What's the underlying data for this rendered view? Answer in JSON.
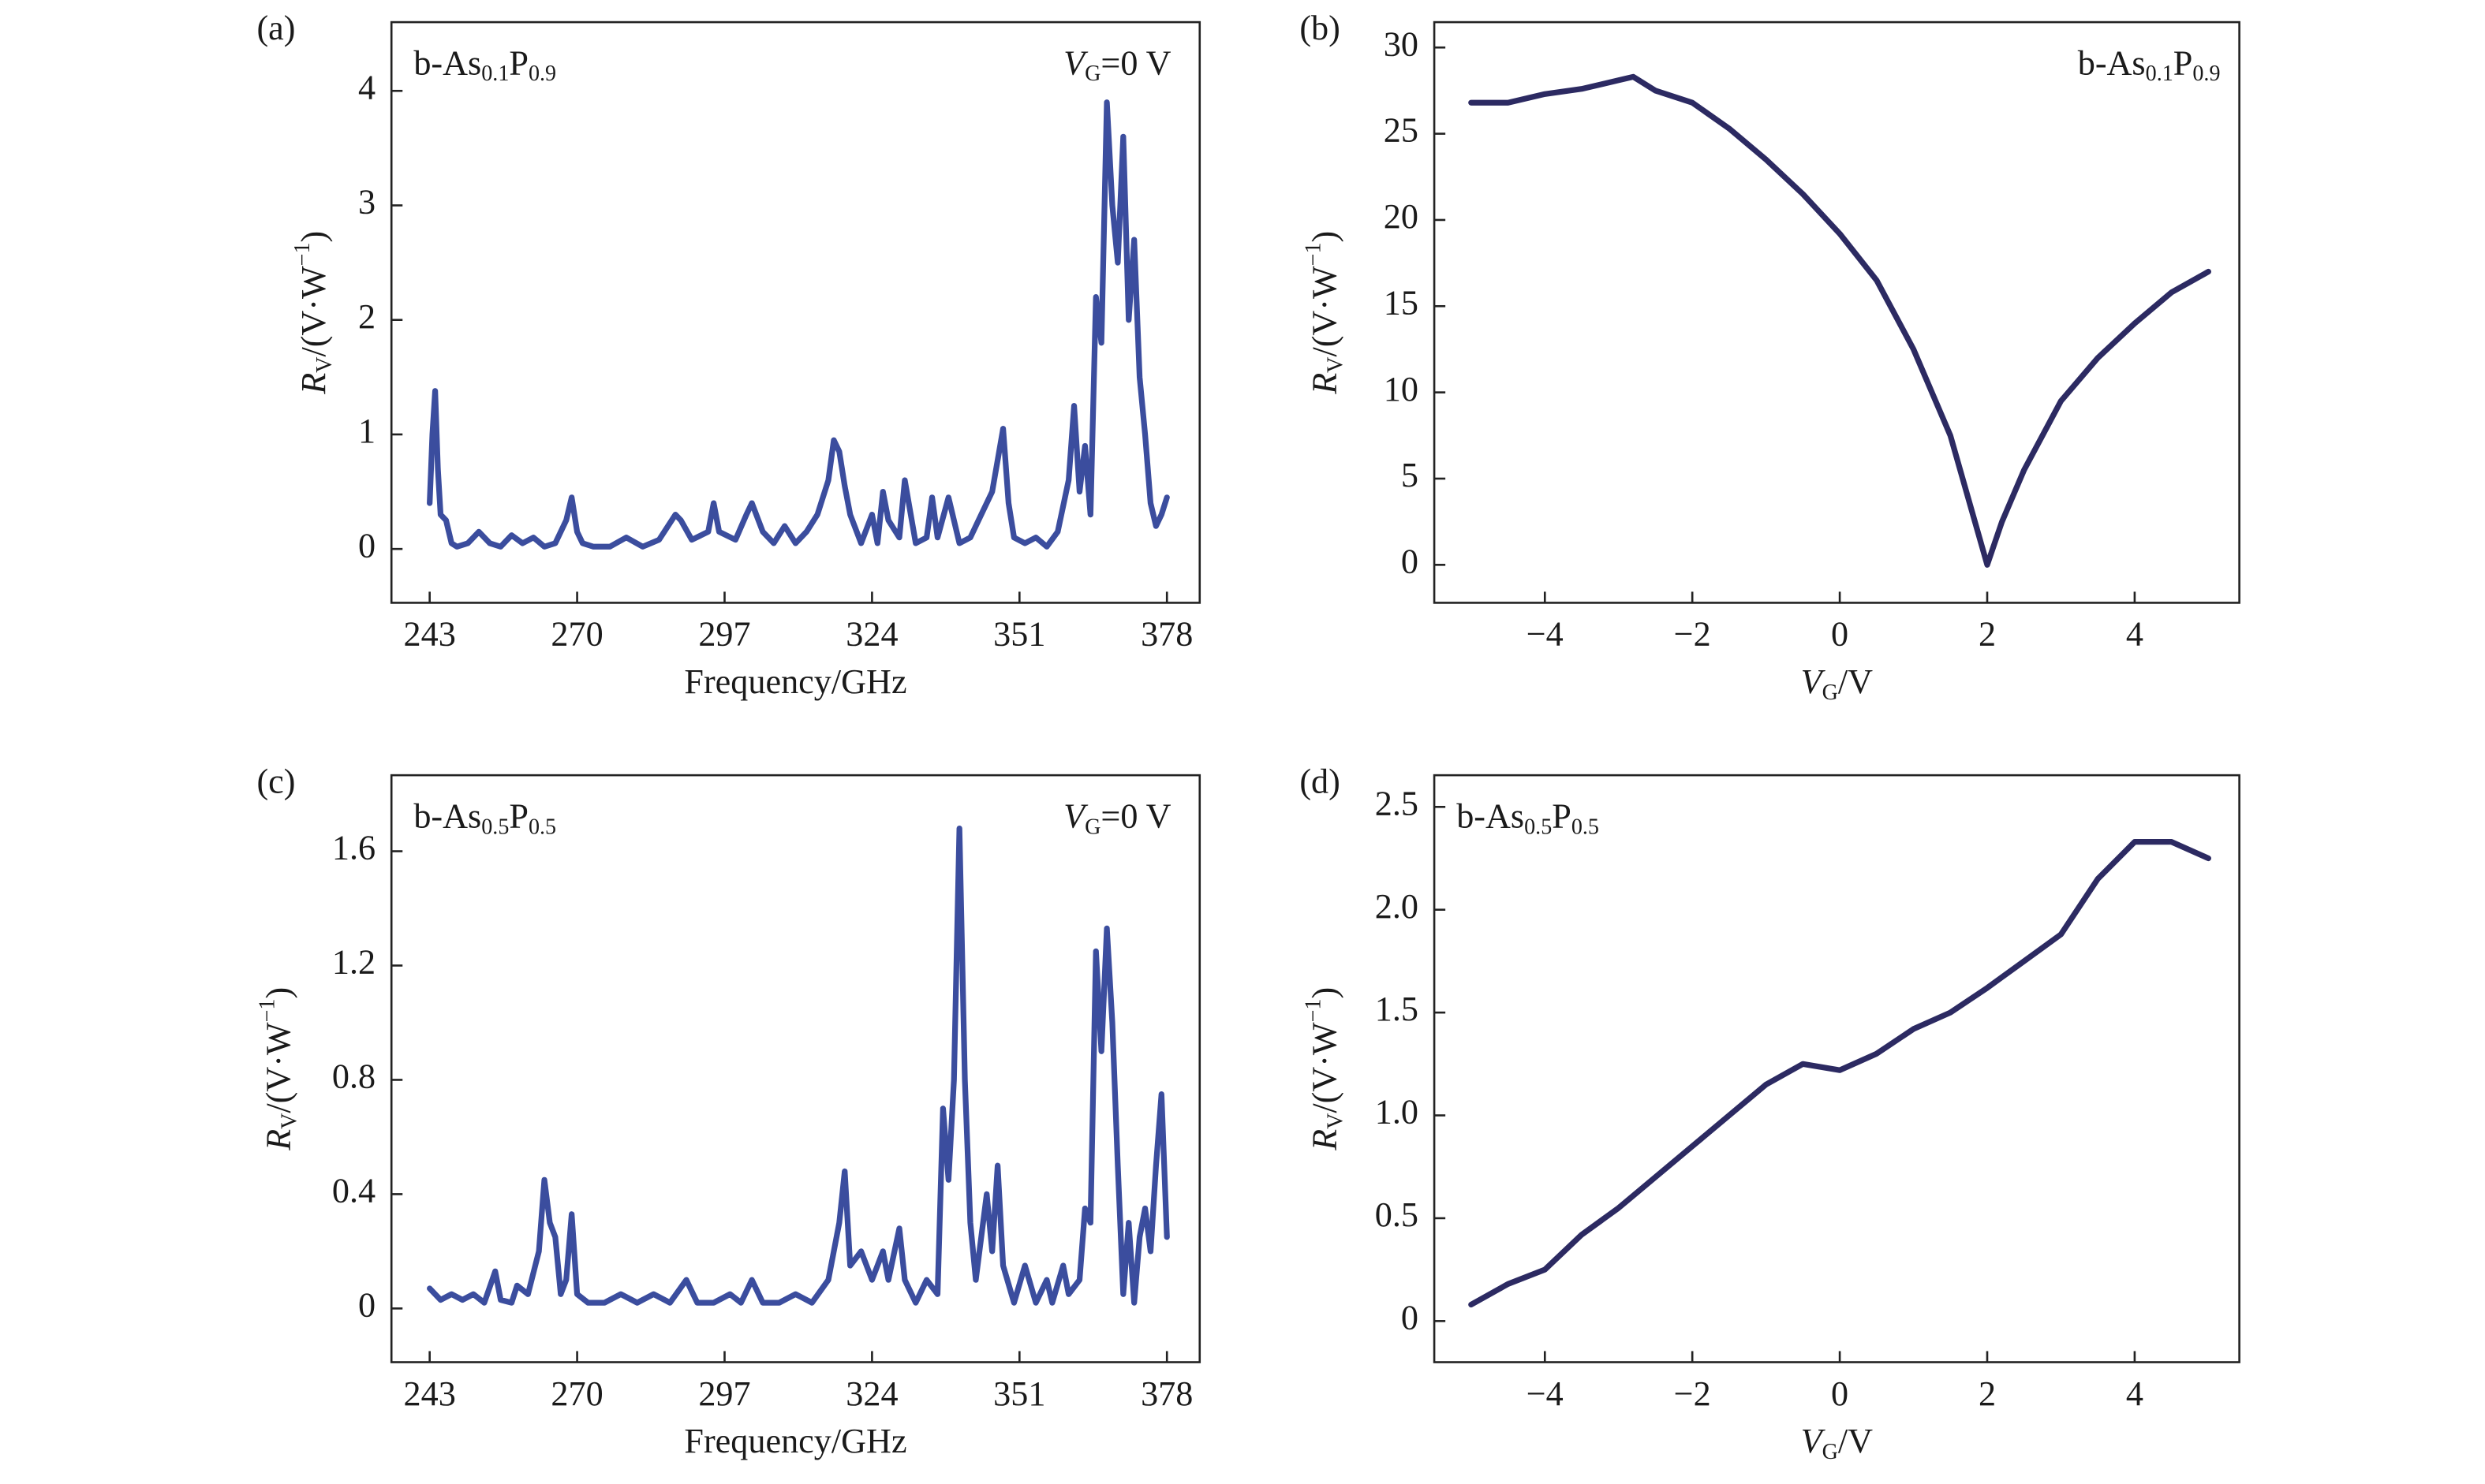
{
  "chart_data": [
    {
      "type": "line",
      "panel_label": "(a)",
      "sample_label": [
        "b-As",
        "0.1",
        "P",
        "0.9"
      ],
      "gate_label": [
        "V",
        "G",
        "=0 V"
      ],
      "xlabel": "Frequency/GHz",
      "ylabel": [
        "R",
        "V",
        "/(V·W",
        "−1",
        ")"
      ],
      "color": "#3b4d9e",
      "xlim": [
        236,
        384
      ],
      "ylim": [
        -0.47,
        4.6
      ],
      "xticks": [
        243,
        270,
        297,
        324,
        351,
        378
      ],
      "yticks": [
        0,
        1,
        2,
        3,
        4
      ],
      "x": [
        243,
        243.5,
        244,
        244.5,
        245,
        246,
        247,
        248,
        250,
        252,
        254,
        256,
        258,
        260,
        262,
        264,
        266,
        268,
        269,
        270,
        271,
        273,
        276,
        279,
        282,
        285,
        288,
        289,
        291,
        294,
        295,
        296,
        299,
        301,
        302,
        304,
        306,
        308,
        310,
        312,
        314,
        316,
        317,
        318,
        319,
        320,
        322,
        324,
        325,
        326,
        327,
        329,
        330,
        332,
        334,
        335,
        336,
        338,
        340,
        342,
        344,
        346,
        348,
        349,
        350,
        352,
        354,
        356,
        358,
        360,
        361,
        362,
        363,
        364,
        365,
        366,
        367,
        368,
        369,
        370,
        371,
        372,
        373,
        374,
        375,
        376,
        377,
        378
      ],
      "values": [
        0.4,
        1.0,
        1.38,
        0.7,
        0.3,
        0.25,
        0.05,
        0.02,
        0.05,
        0.15,
        0.05,
        0.02,
        0.12,
        0.05,
        0.1,
        0.02,
        0.05,
        0.25,
        0.45,
        0.15,
        0.05,
        0.02,
        0.02,
        0.1,
        0.02,
        0.08,
        0.3,
        0.25,
        0.08,
        0.15,
        0.4,
        0.15,
        0.08,
        0.3,
        0.4,
        0.15,
        0.05,
        0.2,
        0.05,
        0.15,
        0.3,
        0.6,
        0.95,
        0.85,
        0.55,
        0.3,
        0.05,
        0.3,
        0.05,
        0.5,
        0.25,
        0.1,
        0.6,
        0.05,
        0.1,
        0.45,
        0.1,
        0.45,
        0.05,
        0.1,
        0.3,
        0.5,
        1.05,
        0.4,
        0.1,
        0.05,
        0.1,
        0.02,
        0.15,
        0.6,
        1.25,
        0.5,
        0.9,
        0.3,
        2.2,
        1.8,
        3.9,
        3.0,
        2.5,
        3.6,
        2.0,
        2.7,
        1.5,
        1.0,
        0.4,
        0.2,
        0.3,
        0.45
      ]
    },
    {
      "type": "line",
      "panel_label": "(b)",
      "sample_label": [
        "b-As",
        "0.1",
        "P",
        "0.9"
      ],
      "xlabel": [
        "V",
        "G",
        "/V"
      ],
      "ylabel": [
        "R",
        "V",
        "/(V·W",
        "−1",
        ")"
      ],
      "color": "#2c2a62",
      "xlim": [
        -5.5,
        5.42
      ],
      "ylim": [
        -2.2,
        31.47
      ],
      "xticks": [
        {
          "value": -4,
          "label": "−4"
        },
        {
          "value": -2,
          "label": "−2"
        },
        0,
        2,
        4
      ],
      "yticks": [
        0,
        5,
        10,
        15,
        20,
        25,
        30
      ],
      "x": [
        -5,
        -4.5,
        -4,
        -3.5,
        -3,
        -2.8,
        -2.5,
        -2,
        -1.5,
        -1,
        -0.5,
        0,
        0.5,
        1,
        1.5,
        1.8,
        2,
        2.2,
        2.5,
        3,
        3.5,
        4,
        4.5,
        5
      ],
      "values": [
        26.8,
        26.8,
        27.3,
        27.6,
        28.1,
        28.3,
        27.5,
        26.8,
        25.3,
        23.5,
        21.5,
        19.2,
        16.5,
        12.5,
        7.5,
        3.0,
        0,
        2.5,
        5.5,
        9.5,
        12.0,
        14.0,
        15.8,
        17.0
      ]
    },
    {
      "type": "line",
      "panel_label": "(c)",
      "sample_label": [
        "b-As",
        "0.5",
        "P",
        "0.5"
      ],
      "gate_label": [
        "V",
        "G",
        "=0 V"
      ],
      "xlabel": "Frequency/GHz",
      "ylabel": [
        "R",
        "V",
        "/(V·W",
        "−1",
        ")"
      ],
      "color": "#3b4d9e",
      "xlim": [
        236,
        384
      ],
      "ylim": [
        -0.188,
        1.866
      ],
      "xticks": [
        243,
        270,
        297,
        324,
        351,
        378
      ],
      "yticks": [
        0,
        0.4,
        0.8,
        1.2,
        1.6
      ],
      "x": [
        243,
        245,
        247,
        249,
        251,
        253,
        255,
        256,
        258,
        259,
        261,
        263,
        264,
        265,
        266,
        267,
        268,
        269,
        270,
        272,
        275,
        278,
        281,
        284,
        287,
        290,
        292,
        295,
        298,
        300,
        302,
        304,
        307,
        310,
        313,
        316,
        318,
        319,
        320,
        322,
        324,
        326,
        327,
        329,
        330,
        332,
        334,
        336,
        337,
        338,
        339,
        340,
        341,
        342,
        343,
        345,
        346,
        347,
        348,
        350,
        352,
        354,
        356,
        357,
        359,
        360,
        362,
        363,
        364,
        365,
        366,
        367,
        368,
        369,
        370,
        371,
        372,
        373,
        374,
        375,
        376,
        377,
        378
      ],
      "values": [
        0.07,
        0.03,
        0.05,
        0.03,
        0.05,
        0.02,
        0.13,
        0.03,
        0.02,
        0.08,
        0.05,
        0.2,
        0.45,
        0.3,
        0.25,
        0.05,
        0.1,
        0.33,
        0.05,
        0.02,
        0.02,
        0.05,
        0.02,
        0.05,
        0.02,
        0.1,
        0.02,
        0.02,
        0.05,
        0.02,
        0.1,
        0.02,
        0.02,
        0.05,
        0.02,
        0.1,
        0.3,
        0.48,
        0.15,
        0.2,
        0.1,
        0.2,
        0.1,
        0.28,
        0.1,
        0.02,
        0.1,
        0.05,
        0.7,
        0.45,
        0.8,
        1.68,
        0.8,
        0.3,
        0.1,
        0.4,
        0.2,
        0.5,
        0.15,
        0.02,
        0.15,
        0.02,
        0.1,
        0.02,
        0.15,
        0.05,
        0.1,
        0.35,
        0.3,
        1.25,
        0.9,
        1.33,
        1.0,
        0.5,
        0.05,
        0.3,
        0.02,
        0.25,
        0.35,
        0.2,
        0.5,
        0.75,
        0.25
      ]
    },
    {
      "type": "line",
      "panel_label": "(d)",
      "sample_label": [
        "b-As",
        "0.5",
        "P",
        "0.5"
      ],
      "xlabel": [
        "V",
        "G",
        "/V"
      ],
      "ylabel": [
        "R",
        "V",
        "/(V·W",
        "−1",
        ")"
      ],
      "color": "#2c2a62",
      "xlim": [
        -5.5,
        5.42
      ],
      "ylim": [
        -0.2,
        2.654
      ],
      "xticks": [
        {
          "value": -4,
          "label": "−4"
        },
        {
          "value": -2,
          "label": "−2"
        },
        0,
        2,
        4
      ],
      "yticks": [
        0,
        0.5,
        {
          "value": 1,
          "label": "1.0"
        },
        1.5,
        {
          "value": 2,
          "label": "2.0"
        },
        2.5
      ],
      "x": [
        -5,
        -4.5,
        -4,
        -3.5,
        -3,
        -2.5,
        -2,
        -1.5,
        -1,
        -0.5,
        0,
        0.5,
        1,
        1.5,
        2,
        2.5,
        3,
        3.5,
        4,
        4.5,
        5
      ],
      "values": [
        0.08,
        0.18,
        0.25,
        0.42,
        0.55,
        0.7,
        0.85,
        1.0,
        1.15,
        1.25,
        1.22,
        1.3,
        1.42,
        1.5,
        1.62,
        1.75,
        1.88,
        2.15,
        2.33,
        2.33,
        2.25
      ]
    }
  ]
}
